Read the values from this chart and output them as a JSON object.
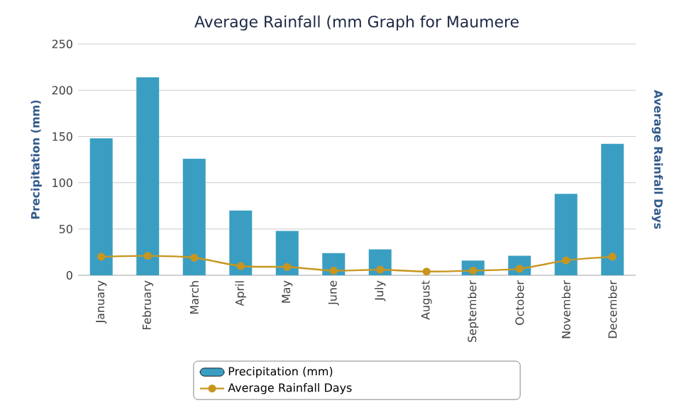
{
  "chart_data": {
    "type": "bar",
    "title": "Average Rainfall (mm Graph for Maumere",
    "ylabel": "Precipitation (mm)",
    "y2label": "Average Rainfall Days",
    "categories": [
      "January",
      "February",
      "March",
      "April",
      "May",
      "June",
      "July",
      "August",
      "September",
      "October",
      "November",
      "December"
    ],
    "series": [
      {
        "name": "Precipitation (mm)",
        "color": "#3a9ec2",
        "values": [
          148,
          214,
          126,
          70,
          48,
          24,
          28,
          null,
          16,
          21,
          88,
          142
        ]
      },
      {
        "name": "Average Rainfall Days",
        "type": "line",
        "color": "#c8961e",
        "marker": "circle",
        "values": [
          20,
          21,
          19,
          10,
          9,
          5,
          6,
          4,
          5,
          7,
          16,
          20
        ]
      }
    ],
    "ylim": [
      0,
      250
    ],
    "yticks": [
      0,
      50,
      100,
      150,
      200,
      250
    ],
    "grid": "y",
    "legend": "bottom"
  }
}
